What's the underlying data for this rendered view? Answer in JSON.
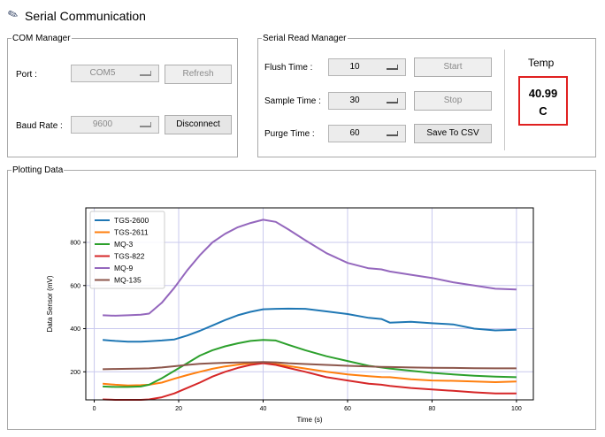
{
  "app": {
    "title": "Serial Communication"
  },
  "com_manager": {
    "legend": "COM Manager",
    "port_label": "Port :",
    "port_value": "COM5",
    "refresh_label": "Refresh",
    "baud_label": "Baud Rate :",
    "baud_value": "9600",
    "disconnect_label": "Disconnect"
  },
  "read_manager": {
    "legend": "Serial Read Manager",
    "flush_label": "Flush Time :",
    "flush_value": "10",
    "sample_label": "Sample Time :",
    "sample_value": "30",
    "purge_label": "Purge Time :",
    "purge_value": "60",
    "start_label": "Start",
    "stop_label": "Stop",
    "save_label": "Save To CSV"
  },
  "temp": {
    "label": "Temp",
    "value": "40.99",
    "unit": "C",
    "border_color": "#e02020"
  },
  "plotting": {
    "legend": "Plotting Data"
  },
  "chart_data": {
    "type": "line",
    "xlabel": "Time (s)",
    "ylabel": "Data Sensor (mV)",
    "xlim": [
      -2,
      104
    ],
    "ylim": [
      70,
      960
    ],
    "xticks": [
      0,
      20,
      40,
      60,
      80,
      100
    ],
    "yticks": [
      200,
      400,
      600,
      800
    ],
    "grid": true,
    "legend_position": "top-left",
    "x": [
      2,
      5,
      8,
      11,
      13,
      16,
      19,
      22,
      25,
      28,
      31,
      34,
      37,
      40,
      43,
      46,
      50,
      55,
      60,
      65,
      68,
      70,
      75,
      80,
      85,
      90,
      95,
      100
    ],
    "series": [
      {
        "name": "TGS-2600",
        "color": "#1f77b4",
        "values": [
          348,
          343,
          340,
          340,
          342,
          345,
          350,
          368,
          390,
          415,
          440,
          462,
          478,
          490,
          492,
          493,
          492,
          480,
          468,
          450,
          445,
          428,
          432,
          425,
          420,
          400,
          392,
          395
        ]
      },
      {
        "name": "TGS-2611",
        "color": "#ff7f0e",
        "values": [
          145,
          140,
          137,
          138,
          140,
          150,
          168,
          185,
          200,
          214,
          225,
          233,
          240,
          244,
          236,
          227,
          215,
          200,
          188,
          180,
          176,
          175,
          165,
          160,
          158,
          155,
          152,
          155
        ]
      },
      {
        "name": "MQ-3",
        "color": "#2ca02c",
        "values": [
          132,
          130,
          130,
          132,
          140,
          170,
          205,
          240,
          275,
          300,
          318,
          332,
          343,
          348,
          345,
          325,
          300,
          272,
          250,
          228,
          220,
          215,
          205,
          195,
          188,
          182,
          178,
          175
        ]
      },
      {
        "name": "TGS-822",
        "color": "#d62728",
        "values": [
          72,
          70,
          70,
          70,
          72,
          82,
          100,
          125,
          150,
          178,
          200,
          218,
          232,
          240,
          232,
          218,
          200,
          175,
          160,
          145,
          140,
          135,
          125,
          118,
          112,
          105,
          100,
          100
        ]
      },
      {
        "name": "MQ-9",
        "color": "#9467bd",
        "values": [
          462,
          460,
          462,
          465,
          470,
          520,
          590,
          670,
          740,
          800,
          840,
          870,
          890,
          905,
          895,
          860,
          810,
          750,
          705,
          680,
          675,
          665,
          650,
          635,
          615,
          600,
          585,
          582
        ]
      },
      {
        "name": "MQ-135",
        "color": "#8c564b",
        "values": [
          212,
          213,
          214,
          215,
          216,
          220,
          226,
          232,
          237,
          240,
          242,
          243,
          244,
          245,
          244,
          240,
          236,
          232,
          228,
          225,
          223,
          222,
          220,
          219,
          218,
          217,
          216,
          216
        ]
      }
    ]
  }
}
